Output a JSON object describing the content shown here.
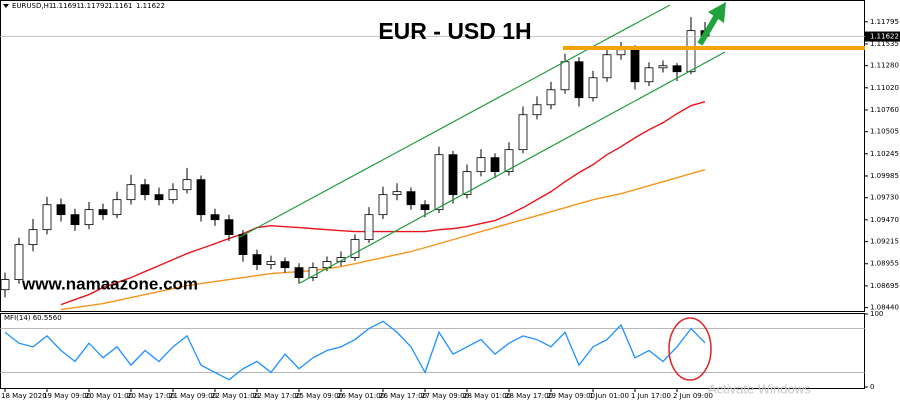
{
  "chart_data": [
    {
      "type": "candlestick",
      "title": "EUR - USD 1H",
      "symbol": "EURUSD,H1",
      "watermark": "www.namaazone.com",
      "os_watermark": "Activate Windows",
      "categories": [
        "18 May 2020",
        null,
        null,
        "19 May 09:00",
        null,
        null,
        "20 May 01:00",
        null,
        null,
        "20 May 17:00",
        null,
        null,
        "21 May 09:00",
        null,
        null,
        "22 May 01:00",
        null,
        null,
        "22 May 17:00",
        null,
        null,
        "25 May 09:00",
        null,
        null,
        "26 May 01:00",
        null,
        null,
        "26 May 17:00",
        null,
        null,
        "27 May 09:00",
        null,
        null,
        "28 May 01:00",
        null,
        null,
        "28 May 17:00",
        null,
        null,
        "29 May 09:00",
        null,
        null,
        "1 Jun 01:00",
        null,
        null,
        "1 Jun 17:00",
        null,
        null,
        "2 Jun 09:00",
        null,
        null
      ],
      "open": [
        1.0865,
        1.08769,
        1.09179,
        1.09355,
        1.09648,
        1.09531,
        1.09414,
        1.0959,
        1.09531,
        1.09707,
        1.09883,
        1.09766,
        1.09707,
        1.09824,
        1.09942,
        1.09531,
        1.09472,
        1.09297,
        1.09062,
        1.08945,
        1.0898,
        1.08909,
        1.08792,
        1.08909,
        1.0898,
        1.09027,
        1.09238,
        1.09531,
        1.09766,
        1.09801,
        1.09648,
        1.0959,
        1.10235,
        1.09766,
        1.10036,
        1.102,
        1.10036,
        1.10294,
        1.10704,
        1.10821,
        1.10997,
        1.11326,
        1.10904,
        1.11138,
        1.11408,
        1.11467,
        1.11091,
        1.11255,
        1.11279,
        1.11209,
        1.11691
      ],
      "high": [
        1.0885,
        1.0926,
        1.0948,
        1.0974,
        1.0972,
        1.096,
        1.0968,
        1.0966,
        1.098,
        1.1,
        1.0995,
        1.0985,
        1.099,
        1.1008,
        1.0999,
        1.096,
        1.0953,
        1.0935,
        1.0912,
        1.0905,
        1.0903,
        1.0896,
        1.0897,
        1.0904,
        1.091,
        1.093,
        1.0962,
        1.0986,
        1.099,
        1.0985,
        1.097,
        1.1033,
        1.1028,
        1.1012,
        1.103,
        1.1025,
        1.1038,
        1.108,
        1.1092,
        1.1109,
        1.1142,
        1.1138,
        1.1122,
        1.1148,
        1.1156,
        1.1152,
        1.1132,
        1.1134,
        1.1131,
        1.1185,
        1.11792
      ],
      "low": [
        1.0856,
        1.0872,
        1.091,
        1.093,
        1.0945,
        1.0934,
        1.0936,
        1.0947,
        1.0949,
        1.0965,
        1.097,
        1.0964,
        1.0966,
        1.0978,
        1.0945,
        1.094,
        1.0922,
        1.0898,
        1.0888,
        1.0889,
        1.0885,
        1.0872,
        1.0875,
        1.0887,
        1.0893,
        1.0899,
        1.092,
        1.0948,
        1.097,
        1.0959,
        1.095,
        1.0955,
        1.0966,
        1.0972,
        1.0998,
        1.0996,
        1.0999,
        1.1025,
        1.1065,
        1.1077,
        1.1095,
        1.108,
        1.1086,
        1.1109,
        1.1135,
        1.11,
        1.1104,
        1.112,
        1.111,
        1.1118,
        1.1161
      ],
      "close": [
        1.08769,
        1.09179,
        1.09355,
        1.09648,
        1.09531,
        1.09414,
        1.0959,
        1.09531,
        1.09707,
        1.09883,
        1.09766,
        1.09707,
        1.09824,
        1.09942,
        1.09531,
        1.09472,
        1.09297,
        1.09062,
        1.08945,
        1.0898,
        1.08909,
        1.08792,
        1.08909,
        1.0898,
        1.09027,
        1.09238,
        1.09531,
        1.09766,
        1.09801,
        1.09648,
        1.0959,
        1.10235,
        1.09766,
        1.10036,
        1.102,
        1.10036,
        1.10294,
        1.10704,
        1.10821,
        1.10997,
        1.11326,
        1.10904,
        1.11138,
        1.11408,
        1.11467,
        1.11091,
        1.11255,
        1.11279,
        1.11209,
        1.11691,
        1.11622
      ],
      "up_color": "#ffffff",
      "down_color": "#000000",
      "overlays": [
        {
          "color": "#e8141b",
          "values": [
            null,
            null,
            null,
            null,
            1.08475,
            1.08534,
            1.08593,
            1.08675,
            1.08734,
            1.08792,
            1.08863,
            1.08933,
            1.09003,
            1.09074,
            1.09132,
            1.09191,
            1.0925,
            1.09308,
            1.09379,
            1.09402,
            1.0939,
            1.09379,
            1.09367,
            1.09355,
            1.09343,
            1.09332,
            1.09332,
            1.09332,
            1.09332,
            1.09332,
            1.09332,
            1.09355,
            1.09367,
            1.0939,
            1.09426,
            1.09461,
            1.09531,
            1.09613,
            1.09707,
            1.09801,
            1.09918,
            1.10024,
            1.10118,
            1.10235,
            1.10329,
            1.10434,
            1.10528,
            1.1061,
            1.10716,
            1.1081,
            1.10857
          ]
        },
        {
          "color": "#f7941d",
          "values": [
            null,
            null,
            null,
            null,
            1.08417,
            1.0844,
            1.08464,
            1.08487,
            1.08522,
            1.08558,
            1.08593,
            1.08628,
            1.08663,
            1.08698,
            1.08722,
            1.08745,
            1.08769,
            1.08792,
            1.08816,
            1.08839,
            1.08851,
            1.08863,
            1.08874,
            1.08898,
            1.08921,
            1.08956,
            1.08992,
            1.09027,
            1.09062,
            1.09097,
            1.09144,
            1.09191,
            1.09238,
            1.09285,
            1.09332,
            1.09379,
            1.09426,
            1.09472,
            1.09519,
            1.09566,
            1.09613,
            1.0966,
            1.09707,
            1.09742,
            1.09777,
            1.09824,
            1.09871,
            1.09918,
            1.09965,
            1.10012,
            1.10059
          ]
        }
      ],
      "ylim": [
        1.084,
        1.1191
      ],
      "yticks": [
        1.11795,
        1.11535,
        {
          "value": 1.1128,
          "label": "1.11280"
        },
        {
          "value": 1.1102,
          "label": "1.11020"
        },
        {
          "value": 1.1076,
          "label": "1.10760"
        },
        1.10505,
        1.10245,
        1.09985,
        {
          "value": 1.0973,
          "label": "1.09730"
        },
        {
          "value": 1.0947,
          "label": "1.09470"
        },
        1.09215,
        1.08955,
        1.08695,
        {
          "value": 1.0844,
          "label": "1.08440"
        }
      ],
      "grid": false
    },
    {
      "type": "line",
      "title": "MFI(14) 60.5560",
      "color": "#1e90ff",
      "values": [
        75,
        60,
        55,
        70,
        50,
        35,
        60,
        40,
        55,
        30,
        50,
        35,
        55,
        70,
        30,
        20,
        10,
        25,
        35,
        20,
        45,
        25,
        40,
        50,
        55,
        65,
        80,
        90,
        75,
        55,
        20,
        75,
        45,
        55,
        65,
        45,
        60,
        70,
        65,
        55,
        75,
        30,
        55,
        65,
        85,
        40,
        50,
        35,
        55,
        80,
        60.556
      ],
      "ylim": [
        0,
        100
      ],
      "yticks": [
        0,
        100
      ],
      "levels": [
        20,
        80
      ]
    }
  ]
}
